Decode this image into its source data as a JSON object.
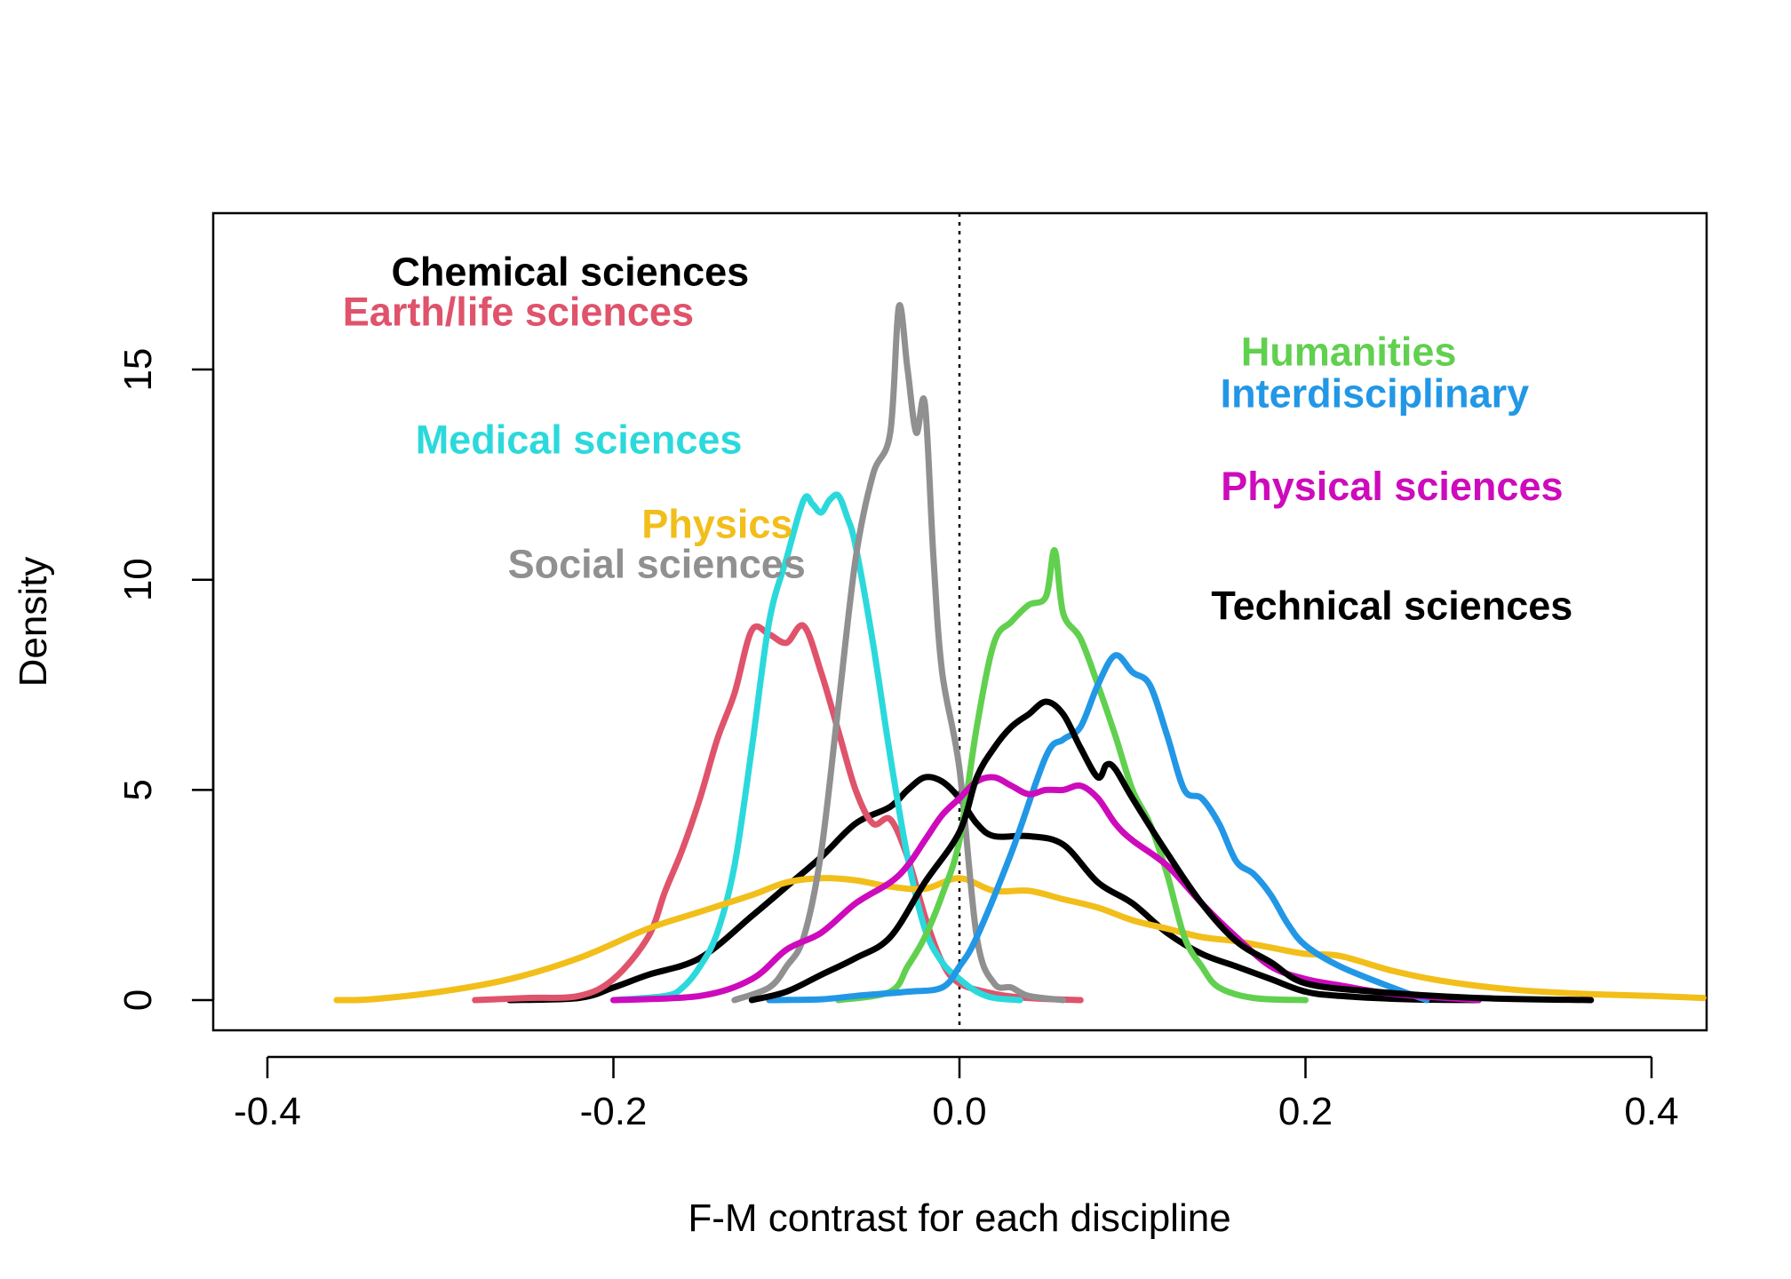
{
  "chart_data": {
    "type": "line",
    "title": "",
    "xlabel": "F-M contrast for each discipline",
    "ylabel": "Density",
    "xlim": [
      -0.4,
      0.43
    ],
    "ylim": [
      0,
      18.5
    ],
    "xticks": [
      -0.4,
      -0.2,
      0.0,
      0.2,
      0.4
    ],
    "xtick_labels": [
      "-0.4",
      "-0.2",
      "0.0",
      "0.2",
      "0.4"
    ],
    "yticks": [
      0,
      5,
      10,
      15
    ],
    "ytick_labels": [
      "0",
      "5",
      "10",
      "15"
    ],
    "reference_line": {
      "x": 0.0,
      "style": "dotted"
    },
    "series": [
      {
        "name": "Chemical sciences",
        "color": "#000000",
        "label_anchor": [
          -0.225,
          17.0
        ],
        "x": [
          -0.26,
          -0.22,
          -0.2,
          -0.18,
          -0.15,
          -0.12,
          -0.1,
          -0.08,
          -0.06,
          -0.04,
          -0.03,
          -0.02,
          -0.01,
          0.0,
          0.01,
          0.02,
          0.04,
          0.06,
          0.08,
          0.1,
          0.12,
          0.14,
          0.16,
          0.18,
          0.2,
          0.22,
          0.26,
          0.3
        ],
        "y": [
          0,
          0.05,
          0.3,
          0.6,
          1.0,
          2.0,
          2.7,
          3.4,
          4.2,
          4.6,
          5.0,
          5.3,
          5.2,
          4.8,
          4.2,
          3.9,
          3.9,
          3.7,
          2.8,
          2.3,
          1.6,
          1.1,
          0.8,
          0.5,
          0.2,
          0.1,
          0.02,
          0
        ]
      },
      {
        "name": "Earth/life sciences",
        "color": "#DF536B",
        "label_anchor": [
          -0.255,
          16.05
        ],
        "x": [
          -0.28,
          -0.25,
          -0.22,
          -0.2,
          -0.18,
          -0.17,
          -0.16,
          -0.15,
          -0.14,
          -0.13,
          -0.12,
          -0.11,
          -0.1,
          -0.09,
          -0.08,
          -0.07,
          -0.06,
          -0.05,
          -0.04,
          -0.03,
          -0.02,
          -0.01,
          0.0,
          0.02,
          0.04,
          0.07
        ],
        "y": [
          0,
          0.05,
          0.1,
          0.5,
          1.5,
          2.6,
          3.6,
          4.8,
          6.2,
          7.3,
          8.8,
          8.7,
          8.5,
          8.9,
          7.8,
          6.4,
          5.0,
          4.2,
          4.3,
          3.4,
          2.0,
          0.9,
          0.4,
          0.15,
          0.05,
          0
        ]
      },
      {
        "name": "Medical sciences",
        "color": "#2BD9DC",
        "label_anchor": [
          -0.22,
          13.0
        ],
        "x": [
          -0.2,
          -0.17,
          -0.16,
          -0.15,
          -0.14,
          -0.13,
          -0.12,
          -0.11,
          -0.1,
          -0.09,
          -0.085,
          -0.08,
          -0.075,
          -0.07,
          -0.065,
          -0.06,
          -0.05,
          -0.04,
          -0.03,
          -0.02,
          -0.01,
          0.0,
          0.01,
          0.02,
          0.035
        ],
        "y": [
          0,
          0.1,
          0.3,
          0.8,
          1.6,
          3.2,
          6.0,
          9.0,
          10.5,
          11.9,
          11.8,
          11.6,
          11.9,
          12.0,
          11.5,
          10.8,
          8.5,
          5.8,
          3.4,
          1.7,
          0.9,
          0.5,
          0.2,
          0.05,
          0
        ]
      },
      {
        "name": "Physics",
        "color": "#F2BE1A",
        "label_anchor": [
          -0.14,
          11.0
        ],
        "x": [
          -0.36,
          -0.34,
          -0.3,
          -0.26,
          -0.22,
          -0.18,
          -0.15,
          -0.12,
          -0.1,
          -0.08,
          -0.06,
          -0.04,
          -0.02,
          0.0,
          0.02,
          0.04,
          0.06,
          0.08,
          0.1,
          0.12,
          0.14,
          0.16,
          0.18,
          0.2,
          0.22,
          0.25,
          0.28,
          0.32,
          0.36,
          0.4,
          0.43
        ],
        "y": [
          0,
          0.02,
          0.2,
          0.5,
          1.0,
          1.7,
          2.1,
          2.5,
          2.8,
          2.9,
          2.85,
          2.7,
          2.65,
          2.9,
          2.6,
          2.6,
          2.4,
          2.2,
          1.9,
          1.7,
          1.5,
          1.4,
          1.25,
          1.1,
          1.05,
          0.7,
          0.45,
          0.25,
          0.15,
          0.1,
          0.05
        ]
      },
      {
        "name": "Social sciences",
        "color": "#909090",
        "label_anchor": [
          -0.175,
          10.05
        ],
        "x": [
          -0.13,
          -0.11,
          -0.1,
          -0.09,
          -0.08,
          -0.07,
          -0.06,
          -0.05,
          -0.04,
          -0.035,
          -0.03,
          -0.025,
          -0.02,
          -0.015,
          -0.01,
          0.0,
          0.01,
          0.02,
          0.03,
          0.04,
          0.06
        ],
        "y": [
          0,
          0.3,
          0.8,
          1.5,
          3.5,
          7.0,
          10.5,
          12.5,
          13.5,
          16.5,
          15.0,
          13.5,
          14.2,
          10.5,
          7.8,
          5.5,
          1.5,
          0.4,
          0.3,
          0.1,
          0
        ]
      },
      {
        "name": "Humanities",
        "color": "#61D04F",
        "label_anchor": [
          0.225,
          15.1
        ],
        "x": [
          -0.07,
          -0.04,
          -0.03,
          -0.02,
          -0.01,
          0.0,
          0.01,
          0.02,
          0.03,
          0.04,
          0.05,
          0.055,
          0.06,
          0.07,
          0.08,
          0.09,
          0.1,
          0.11,
          0.12,
          0.13,
          0.14,
          0.15,
          0.17,
          0.2
        ],
        "y": [
          0,
          0.2,
          0.8,
          1.5,
          2.5,
          3.8,
          6.5,
          8.5,
          9.0,
          9.4,
          9.6,
          10.7,
          9.2,
          8.6,
          7.5,
          6.3,
          5.0,
          4.2,
          3.0,
          1.5,
          0.8,
          0.3,
          0.05,
          0
        ]
      },
      {
        "name": "Interdisciplinary",
        "color": "#2297E6",
        "label_anchor": [
          0.24,
          14.1
        ],
        "x": [
          -0.11,
          -0.08,
          -0.06,
          -0.03,
          -0.01,
          0.0,
          0.01,
          0.03,
          0.05,
          0.06,
          0.07,
          0.08,
          0.09,
          0.1,
          0.11,
          0.12,
          0.13,
          0.14,
          0.15,
          0.16,
          0.17,
          0.18,
          0.19,
          0.2,
          0.22,
          0.25,
          0.27
        ],
        "y": [
          0,
          0.02,
          0.1,
          0.2,
          0.3,
          0.8,
          1.5,
          3.5,
          5.8,
          6.2,
          6.5,
          7.5,
          8.2,
          7.8,
          7.5,
          6.3,
          5.0,
          4.8,
          4.2,
          3.3,
          3.0,
          2.5,
          1.8,
          1.3,
          0.8,
          0.3,
          0
        ]
      },
      {
        "name": "Physical sciences",
        "color": "#CD0BBC",
        "label_anchor": [
          0.25,
          11.9
        ],
        "x": [
          -0.2,
          -0.15,
          -0.12,
          -0.1,
          -0.08,
          -0.06,
          -0.04,
          -0.03,
          -0.02,
          -0.01,
          0.0,
          0.01,
          0.02,
          0.03,
          0.04,
          0.05,
          0.06,
          0.07,
          0.08,
          0.09,
          0.1,
          0.12,
          0.14,
          0.16,
          0.18,
          0.2,
          0.22,
          0.25,
          0.3
        ],
        "y": [
          0,
          0.1,
          0.5,
          1.2,
          1.6,
          2.3,
          2.8,
          3.2,
          3.8,
          4.4,
          4.8,
          5.2,
          5.3,
          5.1,
          4.9,
          5.0,
          5.0,
          5.1,
          4.8,
          4.2,
          3.8,
          3.2,
          2.3,
          1.5,
          0.8,
          0.5,
          0.35,
          0.15,
          0
        ]
      },
      {
        "name": "Technical sciences",
        "color": "#000000",
        "label_anchor": [
          0.25,
          9.05
        ],
        "x": [
          -0.12,
          -0.1,
          -0.08,
          -0.06,
          -0.04,
          -0.02,
          0.0,
          0.01,
          0.02,
          0.03,
          0.04,
          0.05,
          0.06,
          0.07,
          0.08,
          0.085,
          0.09,
          0.1,
          0.12,
          0.14,
          0.16,
          0.18,
          0.2,
          0.24,
          0.3,
          0.365
        ],
        "y": [
          0,
          0.2,
          0.6,
          1.0,
          1.5,
          2.8,
          4.0,
          5.3,
          6.0,
          6.5,
          6.8,
          7.1,
          6.8,
          6.0,
          5.3,
          5.6,
          5.5,
          4.8,
          3.5,
          2.3,
          1.4,
          0.9,
          0.4,
          0.2,
          0.05,
          0
        ]
      }
    ]
  }
}
